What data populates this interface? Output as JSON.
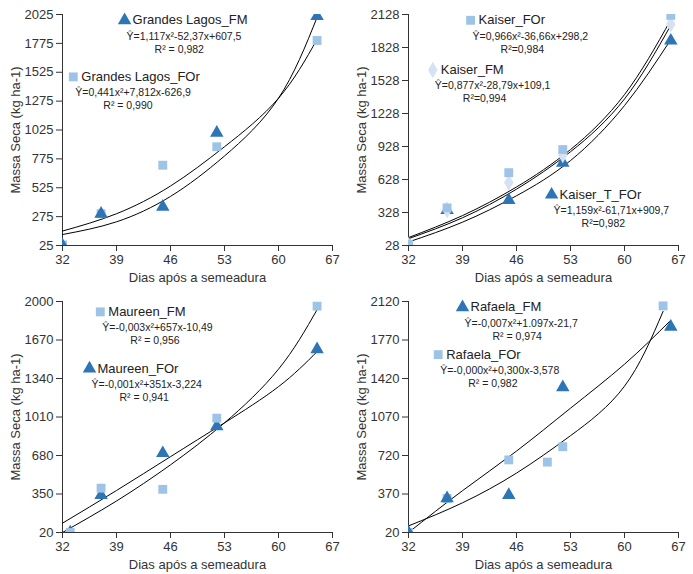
{
  "chart_data": [
    {
      "type": "scatter",
      "xlabel": "Dias após a semeadura",
      "ylabel": "Massa Seca (kg ha-1)",
      "xlim": [
        32,
        67
      ],
      "xticks": [
        32,
        39,
        46,
        53,
        60,
        67
      ],
      "ylim": [
        25,
        2025
      ],
      "yticks": [
        25,
        275,
        525,
        775,
        1025,
        1275,
        1525,
        1775,
        2025
      ],
      "series": [
        {
          "name": "Grandes Lagos_FM",
          "color": "#2e75b6",
          "marker": "triangle",
          "x": [
            32,
            37,
            45,
            52,
            65
          ],
          "values": [
            25,
            300,
            360,
            1000,
            2010
          ],
          "trend": {
            "x": [
              32,
              39,
              46,
              53,
              60,
              65
            ],
            "values": [
              120,
              230,
              450,
              800,
              1300,
              2000
            ]
          },
          "equation": "Ŷ=1,117x²-52,37x+607,5",
          "r2": "R² = 0,982"
        },
        {
          "name": "Grandes Lagos_FOr",
          "color": "#9dc3e6",
          "marker": "square",
          "x": [
            32,
            37,
            45,
            52,
            65
          ],
          "values": [
            30,
            300,
            720,
            880,
            1800
          ],
          "trend": {
            "x": [
              32,
              39,
              46,
              53,
              60,
              65
            ],
            "values": [
              150,
              300,
              540,
              880,
              1300,
              1810
            ]
          },
          "equation": "Ŷ=0,441x²+7,812x-626,9",
          "r2": "R² = 0,990"
        }
      ]
    },
    {
      "type": "scatter",
      "xlabel": "Dias após a semeadura",
      "ylabel": "Massa Seca (kg ha-1)",
      "xlim": [
        32,
        67
      ],
      "xticks": [
        32,
        39,
        46,
        53,
        60,
        67
      ],
      "ylim": [
        28,
        2128
      ],
      "yticks": [
        28,
        328,
        628,
        928,
        1228,
        1528,
        1828,
        2128
      ],
      "series": [
        {
          "name": "Kaiser_FOr",
          "color": "#9dc3e6",
          "marker": "square",
          "x": [
            32,
            37,
            45,
            52,
            66
          ],
          "values": [
            40,
            370,
            690,
            900,
            2120
          ],
          "trend": {
            "x": [
              32,
              39,
              46,
              53,
              60,
              66
            ],
            "values": [
              100,
              300,
              560,
              900,
              1400,
              2080
            ]
          },
          "equation": "Ŷ=0,966x²-36,66x+298,2",
          "r2": "R²=0,984"
        },
        {
          "name": "Kaiser_FM",
          "color": "#d6e2f3",
          "marker": "diamond",
          "x": [
            32,
            37,
            45,
            52,
            66
          ],
          "values": [
            30,
            350,
            600,
            850,
            2040
          ],
          "trend": {
            "x": [
              32,
              39,
              46,
              53,
              60,
              66
            ],
            "values": [
              90,
              280,
              540,
              880,
              1360,
              2030
            ]
          },
          "equation": "Ŷ=0,877x²-28,79x+109,1",
          "r2": "R²=0,994"
        },
        {
          "name": "Kaiser_T_FOr",
          "color": "#2e75b6",
          "marker": "triangle",
          "x": [
            32,
            37,
            45,
            52,
            66
          ],
          "values": [
            40,
            350,
            440,
            780,
            1890
          ],
          "trend": {
            "x": [
              32,
              39,
              46,
              53,
              60,
              66
            ],
            "values": [
              60,
              240,
              480,
              800,
              1300,
              1900
            ]
          },
          "equation": "Ŷ=1,159x²-61,71x+909,7",
          "r2": "R²=0,982"
        }
      ]
    },
    {
      "type": "scatter",
      "xlabel": "Dias após a semeadura",
      "ylabel": "Massa Seca (kg ha-1)",
      "xlim": [
        32,
        67
      ],
      "xticks": [
        32,
        39,
        46,
        53,
        60,
        67
      ],
      "ylim": [
        20,
        2000
      ],
      "yticks": [
        20,
        350,
        680,
        1010,
        1340,
        1670,
        2000
      ],
      "series": [
        {
          "name": "Maureen_FM",
          "color": "#9dc3e6",
          "marker": "square",
          "x": [
            33,
            37,
            45,
            52,
            65
          ],
          "values": [
            20,
            400,
            390,
            1000,
            1960
          ],
          "trend": {
            "x": [
              32,
              39,
              46,
              53,
              60,
              65
            ],
            "values": [
              20,
              290,
              600,
              960,
              1420,
              1930
            ]
          },
          "equation": "Ŷ=-0,003x²+657x-10,49",
          "r2": "R² = 0,956"
        },
        {
          "name": "Maureen_FOr",
          "color": "#2e75b6",
          "marker": "triangle",
          "x": [
            33,
            37,
            45,
            52,
            65
          ],
          "values": [
            20,
            340,
            700,
            930,
            1590
          ],
          "trend": {
            "x": [
              32,
              39,
              46,
              53,
              60,
              65
            ],
            "values": [
              100,
              380,
              670,
              960,
              1270,
              1570
            ]
          },
          "equation": "Ŷ=-0,001x²+351x-3,224",
          "r2": "R² = 0,941"
        }
      ]
    },
    {
      "type": "scatter",
      "xlabel": "Dias após a semeadura",
      "ylabel": "Massa Seca (kg ha-1)",
      "xlim": [
        32,
        67
      ],
      "xticks": [
        32,
        39,
        46,
        53,
        60,
        67
      ],
      "ylim": [
        20,
        2120
      ],
      "yticks": [
        20,
        370,
        720,
        1070,
        1420,
        1770,
        2120
      ],
      "series": [
        {
          "name": "Rafaela_FM",
          "color": "#2e75b6",
          "marker": "triangle",
          "x": [
            32,
            37,
            45,
            52,
            66
          ],
          "values": [
            20,
            330,
            360,
            1340,
            1890
          ],
          "trend": {
            "x": [
              32,
              39,
              46,
              53,
              60,
              66
            ],
            "values": [
              20,
              400,
              760,
              1150,
              1550,
              1950
            ]
          },
          "equation": "Ŷ=-0,007x²+1.097x-21,7",
          "r2": "R² = 0,974"
        },
        {
          "name": "Rafaela_FOr",
          "color": "#9dc3e6",
          "marker": "square",
          "x": [
            32,
            37,
            45,
            50,
            52,
            65
          ],
          "values": [
            20,
            330,
            680,
            660,
            800,
            2080
          ],
          "trend": {
            "x": [
              32,
              39,
              46,
              53,
              60,
              65
            ],
            "values": [
              80,
              290,
              560,
              900,
              1350,
              2030
            ]
          },
          "equation": "Ŷ=-0,000x²+0,300x-3,578",
          "r2": "R² = 0,982"
        }
      ]
    }
  ]
}
